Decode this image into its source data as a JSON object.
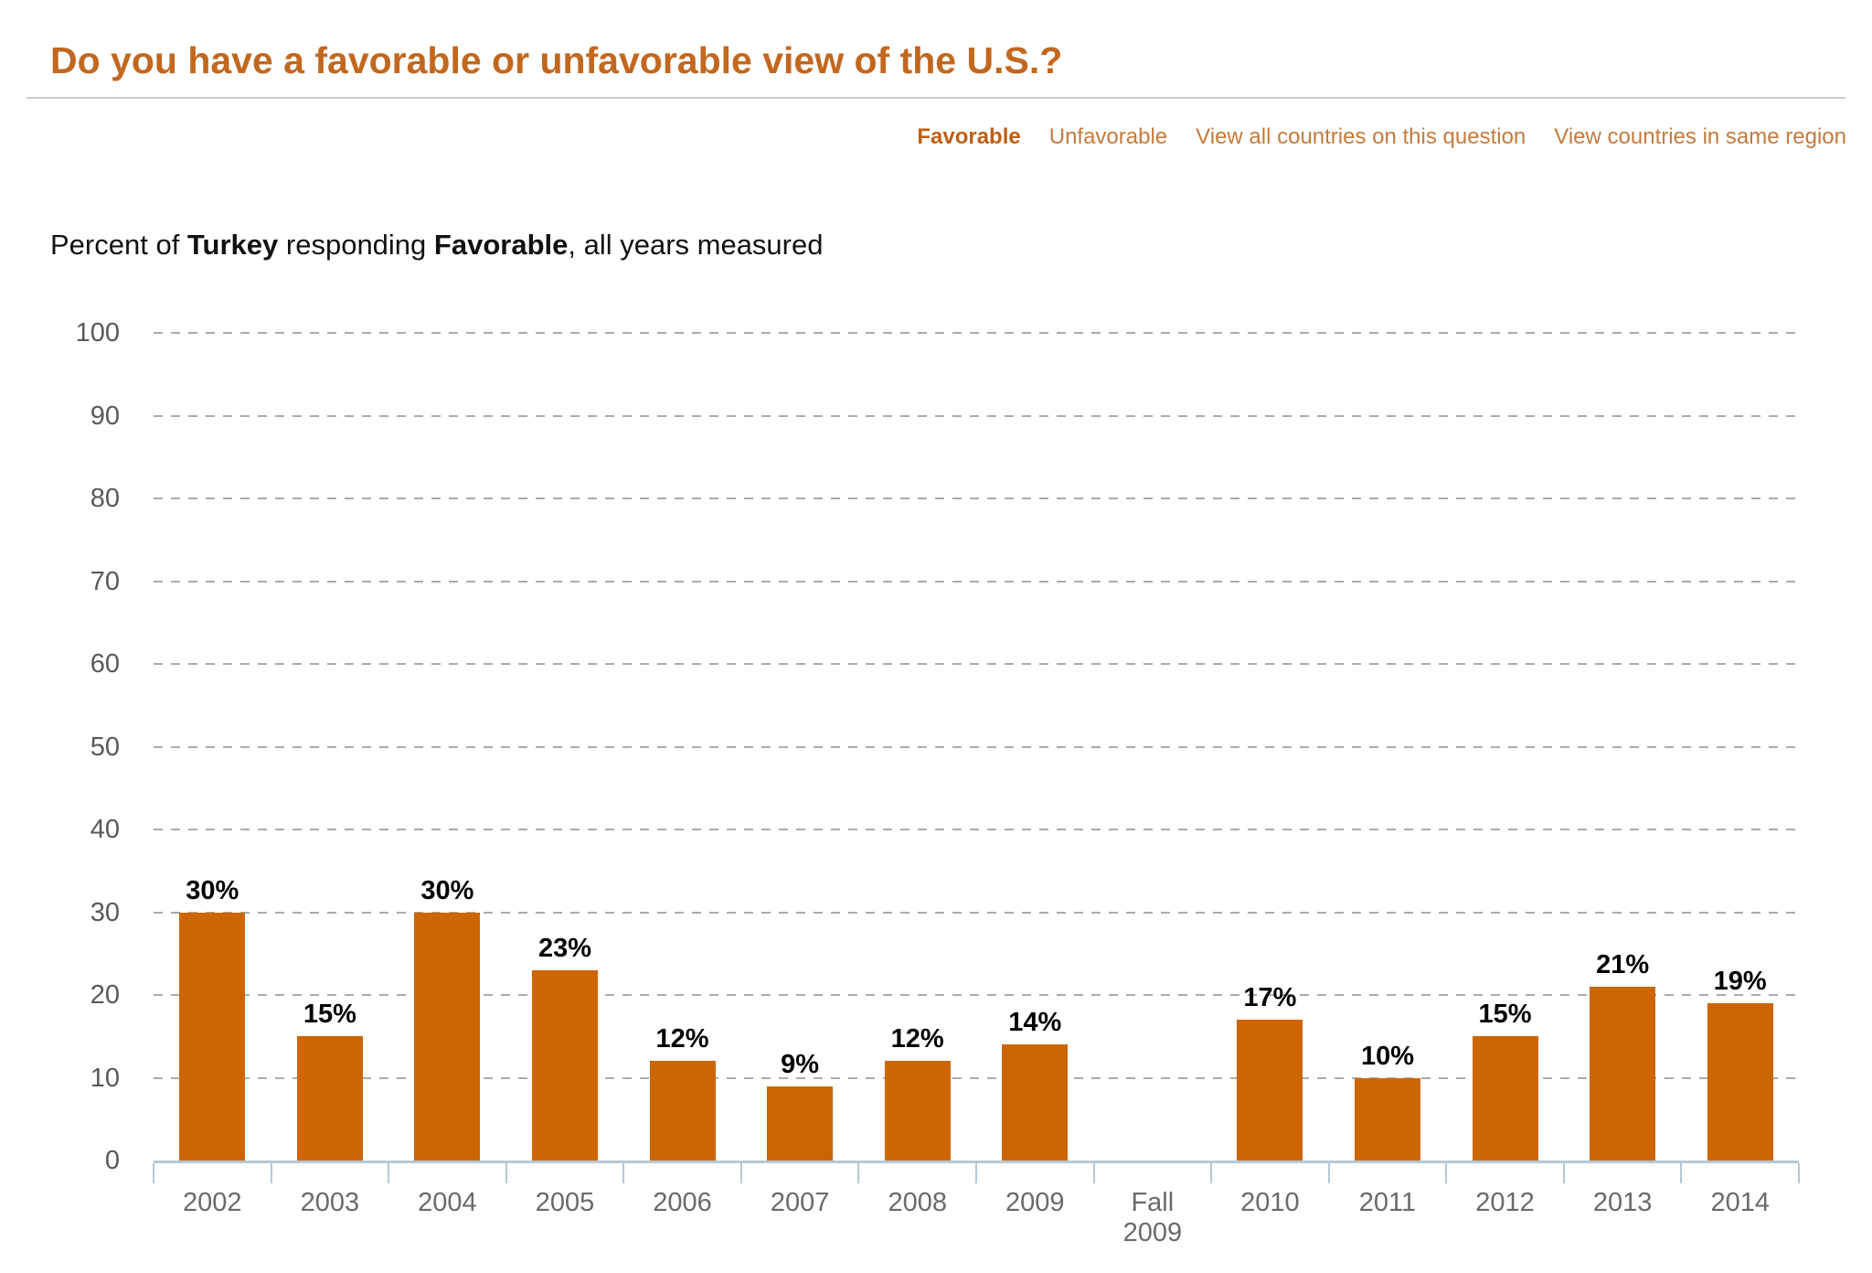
{
  "header": {
    "title": "Do you have a favorable or unfavorable view of the U.S.?"
  },
  "nav": {
    "links": [
      {
        "id": "favorable",
        "label": "Favorable",
        "active": true
      },
      {
        "id": "unfavorable",
        "label": "Unfavorable",
        "active": false
      },
      {
        "id": "view-all-countries",
        "label": "View all countries on this question",
        "active": false
      },
      {
        "id": "view-same-region",
        "label": "View countries in same region",
        "active": false
      }
    ]
  },
  "subtitle": {
    "segments": [
      {
        "text": "Percent of ",
        "bold": false
      },
      {
        "text": "Turkey",
        "bold": true
      },
      {
        "text": " responding ",
        "bold": false
      },
      {
        "text": "Favorable",
        "bold": true
      },
      {
        "text": ", all years measured",
        "bold": false
      }
    ]
  },
  "chart_data": {
    "type": "bar",
    "title": "Percent of Turkey responding Favorable, all years measured",
    "categories": [
      "2002",
      "2003",
      "2004",
      "2005",
      "2006",
      "2007",
      "2008",
      "2009",
      "Fall\n2009",
      "2010",
      "2011",
      "2012",
      "2013",
      "2014"
    ],
    "values": [
      30,
      15,
      30,
      23,
      12,
      9,
      12,
      14,
      null,
      17,
      10,
      15,
      21,
      19
    ],
    "value_labels": [
      "30%",
      "15%",
      "30%",
      "23%",
      "12%",
      "9%",
      "12%",
      "14%",
      "",
      "17%",
      "10%",
      "15%",
      "21%",
      "19%"
    ],
    "xlabel": "",
    "ylabel": "",
    "ylim": [
      0,
      100
    ],
    "yticks": [
      0,
      10,
      20,
      30,
      40,
      50,
      60,
      70,
      80,
      90,
      100
    ],
    "grid": "horizontal-dashed",
    "legend": "none",
    "bar_color": "#cc6602",
    "gridline_color": "#ababab",
    "axis_color": "#b6c8d6",
    "y_label_color": "#595959",
    "x_label_color": "#6a6a6a",
    "value_label_color": "#000000"
  },
  "colors": {
    "title": "#c2671e",
    "link_active": "#bd5f15",
    "link_normal": "#c37b3e",
    "rule": "#cccccc",
    "background": "#ffffff"
  }
}
